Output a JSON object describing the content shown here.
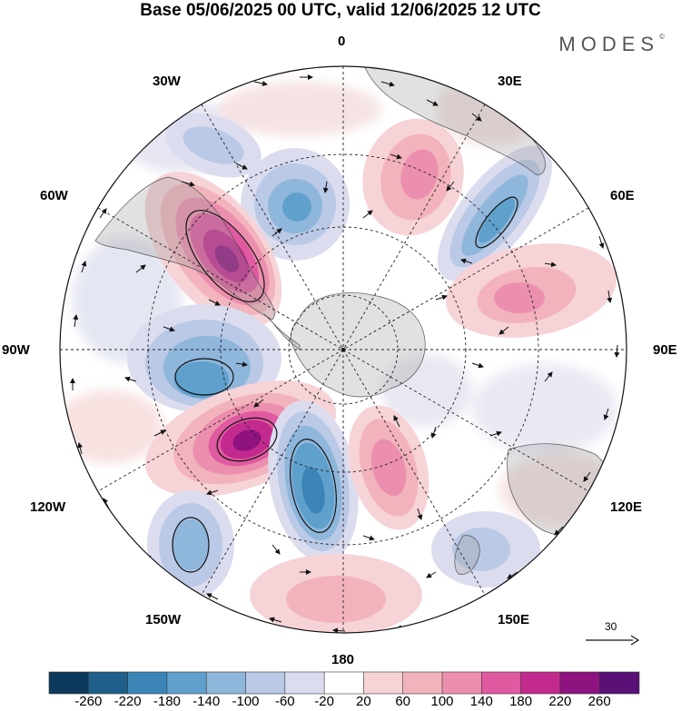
{
  "title": "Base 05/06/2025 00 UTC, valid 12/06/2025 12 UTC",
  "brand": "MODES",
  "brand_mark": "©",
  "longitude_labels": {
    "lon0": "0",
    "lon30e": "30E",
    "lon60e": "60E",
    "lon90e": "90E",
    "lon120e": "120E",
    "lon150e": "150E",
    "lon180": "180",
    "lon150w": "150W",
    "lon120w": "120W",
    "lon90w": "90W",
    "lon60w": "60W",
    "lon30w": "30W"
  },
  "reference_vector": "30",
  "colorbar": {
    "ticks": [
      "-260",
      "-220",
      "-180",
      "-140",
      "-100",
      "-60",
      "-20",
      "20",
      "60",
      "100",
      "140",
      "180",
      "220",
      "260"
    ],
    "colors": [
      "#0d3a5c",
      "#1f5f8b",
      "#3a84b6",
      "#5fa0cc",
      "#8fb6db",
      "#b9c9e6",
      "#dcdcef",
      "#ffffff",
      "#f6d3d6",
      "#f2b3bd",
      "#ec8fae",
      "#df5aa0",
      "#c22a8e",
      "#8e1380",
      "#5b1078"
    ]
  },
  "anomaly_cells": [
    {
      "id": "neg-northwest-1",
      "sign": "neg",
      "level": 3
    },
    {
      "id": "neg-north",
      "sign": "neg",
      "level": 4
    },
    {
      "id": "pos-north-east",
      "sign": "pos",
      "level": 3
    },
    {
      "id": "neg-east-upper",
      "sign": "neg",
      "level": 4
    },
    {
      "id": "pos-east",
      "sign": "pos",
      "level": 3
    },
    {
      "id": "pos-west-strong",
      "sign": "pos",
      "level": 6
    },
    {
      "id": "neg-west",
      "sign": "neg",
      "level": 4
    },
    {
      "id": "pos-southwest-strong",
      "sign": "pos",
      "level": 6
    },
    {
      "id": "neg-south-center",
      "sign": "neg",
      "level": 5
    },
    {
      "id": "pos-south-center",
      "sign": "pos",
      "level": 3
    },
    {
      "id": "neg-southwest-far",
      "sign": "neg",
      "level": 3
    },
    {
      "id": "pos-south",
      "sign": "pos",
      "level": 2
    },
    {
      "id": "neg-southeast",
      "sign": "neg",
      "level": 2
    }
  ]
}
